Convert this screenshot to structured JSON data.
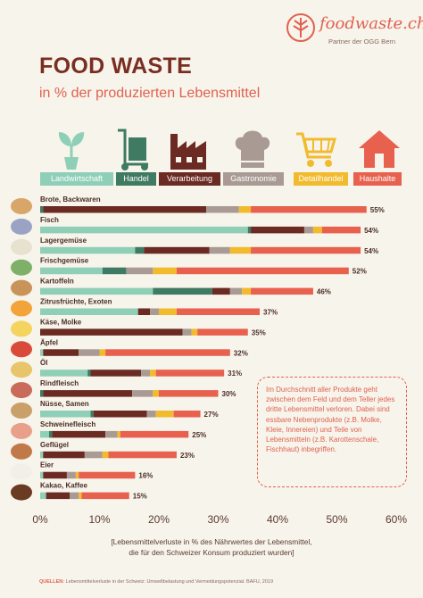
{
  "brand": {
    "name": "foodwaste.ch",
    "partner": "Partner der OGG Bern"
  },
  "title": "FOOD WASTE",
  "subtitle": "in % der produzierten Lebensmittel",
  "categories": [
    {
      "label": "Landwirtschaft",
      "icon": "plant-icon",
      "color": "#8fcfb8"
    },
    {
      "label": "Handel",
      "icon": "hand-truck-icon",
      "color": "#3f7a62"
    },
    {
      "label": "Verarbeitung",
      "icon": "factory-icon",
      "color": "#6b2a22"
    },
    {
      "label": "Gastronomie",
      "icon": "chef-hat-icon",
      "color": "#a99b94"
    },
    {
      "label": "Detailhandel",
      "icon": "shopping-cart-icon",
      "color": "#f2bb2e"
    },
    {
      "label": "Haushalte",
      "icon": "house-icon",
      "color": "#e8604e"
    }
  ],
  "note": "Im Durchschnitt aller Produkte geht zwischen dem Feld und dem Teller jedes dritte Lebensmittel verloren. Dabei sind essbare Nebenprodukte (z.B. Molke, Kleie, Innereien) und Teile von Lebensmitteln (z.B. Karottenschale, Fischhaut) inbegriffen.",
  "xaxis_label_line1": "[Lebensmittelverluste in % des Nährwertes der Lebensmittel,",
  "xaxis_label_line2": "die für den Schweizer Konsum produziert wurden]",
  "source_label": "QUELLEN:",
  "source_text": "Lebensmittelverluste in der Schweiz: Umweltbelastung und Vermeidungspotenzial. BAFU, 2019",
  "chart_data": {
    "type": "bar",
    "orientation": "horizontal",
    "stacked": true,
    "xlim": [
      0,
      60
    ],
    "xticks": [
      "0%",
      "10%",
      "20%",
      "30%",
      "40%",
      "50%",
      "60%"
    ],
    "categories": [
      "Brote, Backwaren",
      "Fisch",
      "Lagergemüse",
      "Frischgemüse",
      "Kartoffeln",
      "Zitrusfrüchte, Exoten",
      "Käse, Molke",
      "Äpfel",
      "Öl",
      "Rindfleisch",
      "Nüsse, Samen",
      "Schweinefleisch",
      "Geflügel",
      "Eier",
      "Kakao, Kaffee"
    ],
    "totals_labels": [
      "55%",
      "54%",
      "54%",
      "52%",
      "46%",
      "37%",
      "35%",
      "32%",
      "31%",
      "30%",
      "27%",
      "25%",
      "23%",
      "16%",
      "15%"
    ],
    "series": [
      {
        "name": "Landwirtschaft",
        "values": [
          0,
          35,
          16,
          10.5,
          19,
          16.5,
          0,
          0.5,
          8,
          0,
          8.5,
          1.5,
          0.5,
          0.5,
          1
        ]
      },
      {
        "name": "Handel",
        "values": [
          0.5,
          0.5,
          1.5,
          4,
          10,
          0,
          0,
          0,
          0.5,
          0.5,
          0.5,
          0.5,
          0,
          0,
          0
        ]
      },
      {
        "name": "Verarbeitung",
        "values": [
          27.5,
          9,
          11,
          0,
          3,
          2,
          24,
          6,
          8.5,
          15,
          9,
          9,
          7,
          4,
          4
        ]
      },
      {
        "name": "Gastronomie",
        "values": [
          5.5,
          1.5,
          3.5,
          4.5,
          2,
          1.5,
          1.5,
          3.5,
          1.5,
          3.5,
          1.5,
          2,
          3,
          1.5,
          1.5
        ]
      },
      {
        "name": "Detailhandel",
        "values": [
          2,
          1.5,
          3.5,
          4,
          1.5,
          3,
          1,
          1,
          1,
          1,
          3,
          0.5,
          1,
          0.5,
          0.5
        ]
      },
      {
        "name": "Haushalte",
        "values": [
          19.5,
          6.5,
          18.5,
          29,
          10.5,
          14,
          8.5,
          21,
          11.5,
          10,
          4.5,
          11.5,
          11.5,
          9.5,
          8
        ]
      }
    ]
  }
}
